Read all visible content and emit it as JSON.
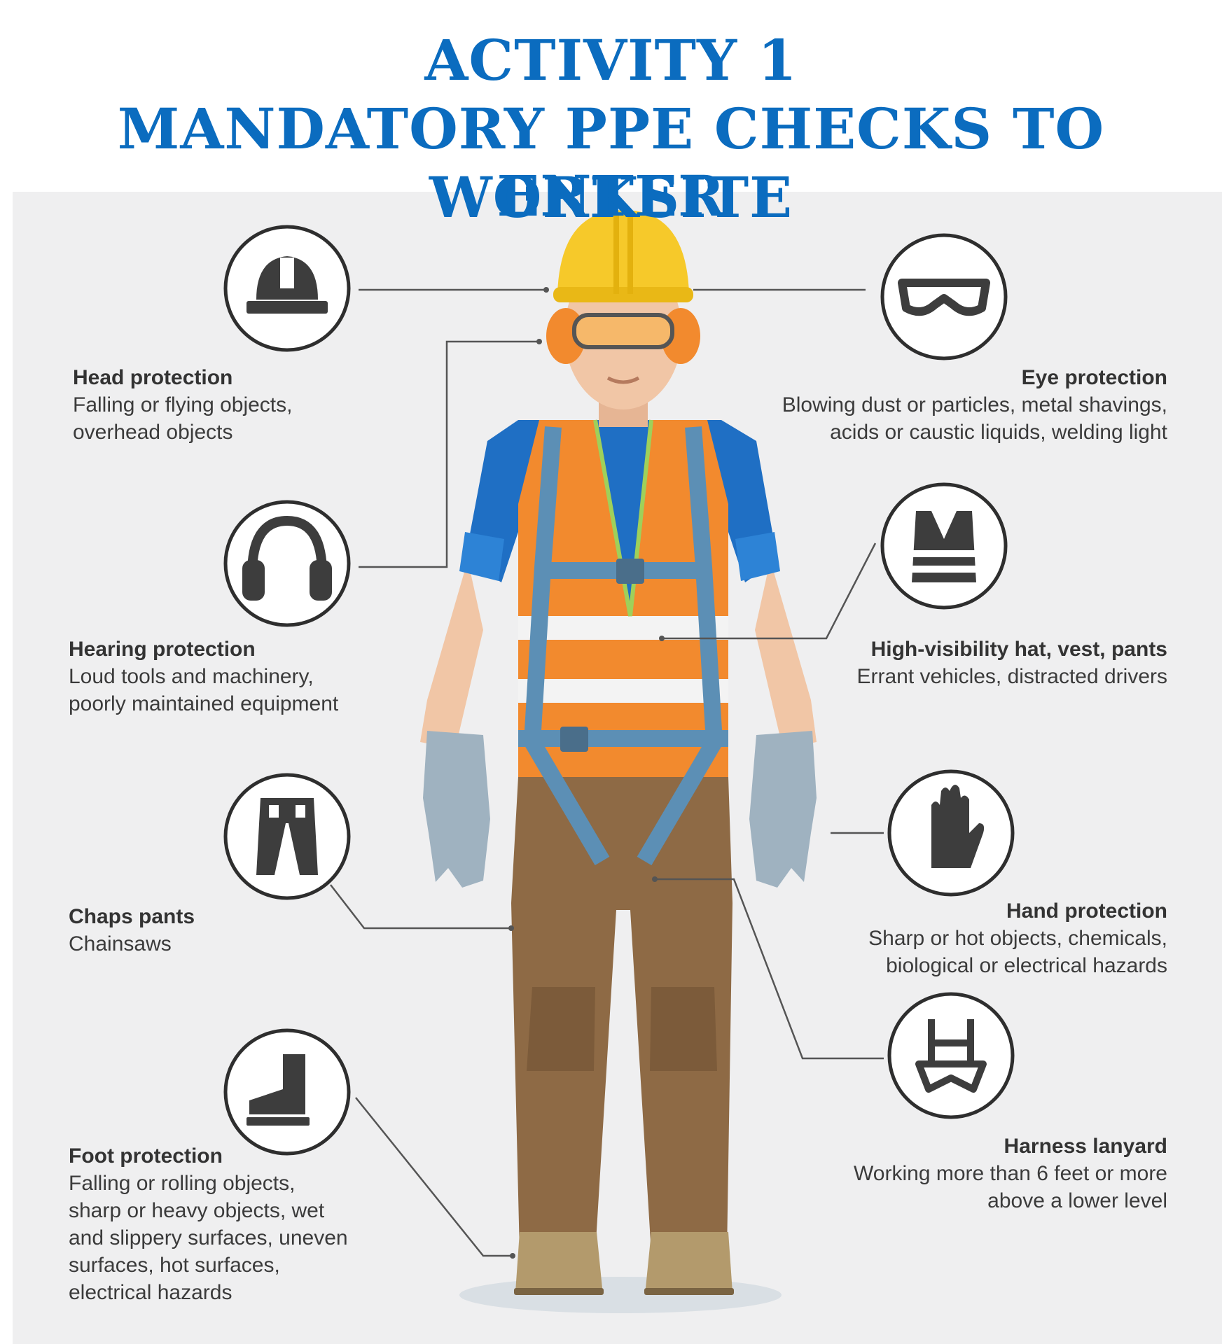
{
  "title": {
    "line1": "ACTIVITY 1",
    "line2": "MANDATORY PPE CHECKS TO ENTER",
    "line3": "WORKSITE"
  },
  "colors": {
    "title_blue": "#0b6cbf",
    "panel": "#efeff0",
    "icon_dark": "#3d3d3d",
    "hat_yellow": "#f6c92a",
    "vest_orange": "#f28a2e",
    "shirt_blue": "#1f6fc4",
    "pants_brown": "#8e6a45",
    "glove_gray": "#9fb2c0"
  },
  "items": {
    "head": {
      "icon": "hard-hat-icon",
      "heading": "Head protection",
      "description": "Falling or flying objects,\noverhead objects"
    },
    "hearing": {
      "icon": "earmuffs-icon",
      "heading": "Hearing protection",
      "description": "Loud tools and machinery,\npoorly maintained equipment"
    },
    "chaps": {
      "icon": "chaps-pants-icon",
      "heading": "Chaps pants",
      "description": "Chainsaws"
    },
    "foot": {
      "icon": "boot-icon",
      "heading": "Foot protection",
      "description": "Falling or rolling objects,\nsharp or heavy objects, wet\nand slippery surfaces, uneven\nsurfaces, hot surfaces,\nelectrical hazards"
    },
    "eye": {
      "icon": "safety-goggles-icon",
      "heading": "Eye protection",
      "description": "Blowing dust or particles, metal shavings,\nacids or caustic liquids, welding light"
    },
    "hivis": {
      "icon": "hi-vis-vest-icon",
      "heading": "High-visibility hat, vest, pants",
      "description": "Errant vehicles, distracted drivers"
    },
    "hand": {
      "icon": "glove-icon",
      "heading": "Hand protection",
      "description": "Sharp or hot objects, chemicals,\nbiological or electrical hazards"
    },
    "harness": {
      "icon": "harness-icon",
      "heading": "Harness lanyard",
      "description": "Working more than 6 feet or more\nabove a lower level"
    }
  }
}
